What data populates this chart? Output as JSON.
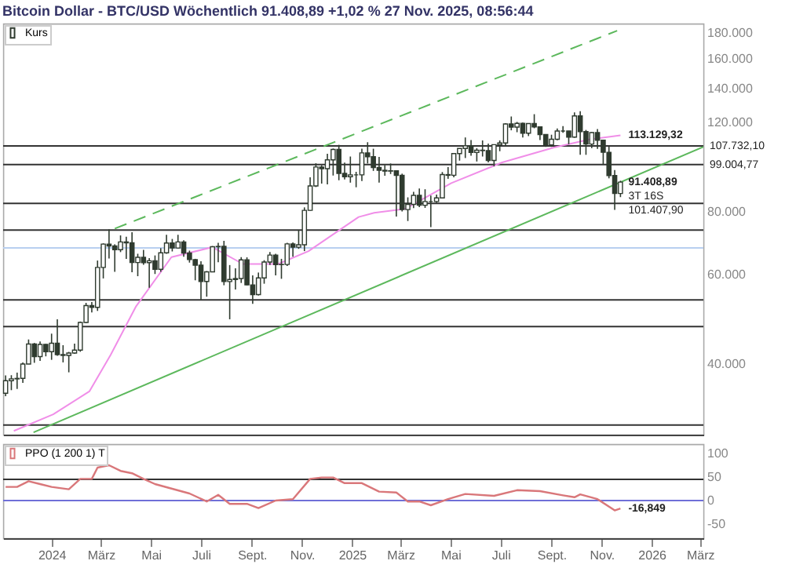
{
  "chart_data": [
    {
      "type": "candlestick",
      "title": "Bitcoin Dollar - BTC/USD Wöchentlich 91.408,89 +1,02 % 27 Nov. 2025, 08:56:44",
      "xlim": [
        "2023-11-03",
        "2026-03-05"
      ],
      "ylim": [
        29000,
        188000
      ],
      "log": "y",
      "grid": false,
      "legend": "top left",
      "tick_labels": "y",
      "yticks": [
        {
          "value": 40000,
          "label": "40.000"
        },
        {
          "value": 60000,
          "label": "60.000"
        },
        {
          "value": 80000,
          "label": "80.000"
        },
        {
          "value": 120000,
          "label": "120.000"
        },
        {
          "value": 140000,
          "label": "140.000"
        },
        {
          "value": 160000,
          "label": "160.000"
        },
        {
          "value": 180000,
          "label": "180.000"
        }
      ],
      "series": [
        {
          "name": "Kurs",
          "type": "candlestick",
          "color": "#2f3b2f",
          "colors": [
            "#ffffff",
            "#ffffff",
            "#ffffff",
            "#ffffff",
            "#ffffff",
            "#2f3b2f",
            "#ffffff",
            "#2f3b2f",
            "#ffffff",
            "#2f3b2f",
            "#2f3b2f",
            "#ffffff",
            "#ffffff",
            "#ffffff",
            "#ffffff",
            "#2f3b2f",
            "#ffffff",
            "#ffffff",
            "#2f3b2f",
            "#2f3b2f",
            "#ffffff",
            "#2f3b2f",
            "#2f3b2f",
            "#ffffff",
            "#2f3b2f",
            "#ffffff",
            "#2f3b2f",
            "#ffffff",
            "#ffffff",
            "#2f3b2f",
            "#ffffff",
            "#2f3b2f",
            "#2f3b2f",
            "#2f3b2f",
            "#2f3b2f",
            "#ffffff",
            "#ffffff",
            "#ffffff",
            "#2f3b2f",
            "#ffffff",
            "#ffffff",
            "#ffffff",
            "#2f3b2f",
            "#2f3b2f",
            "#ffffff",
            "#ffffff",
            "#ffffff",
            "#2f3b2f",
            "#ffffff",
            "#ffffff",
            "#2f3b2f",
            "#ffffff",
            "#ffffff",
            "#ffffff",
            "#ffffff",
            "#2f3b2f",
            "#ffffff",
            "#ffffff",
            "#2f3b2f",
            "#2f3b2f",
            "#ffffff",
            "#2f3b2f",
            "#ffffff",
            "#2f3b2f",
            "#2f3b2f",
            "#2f3b2f",
            "#2f3b2f",
            "#ffffff",
            "#2f3b2f",
            "#2f3b2f",
            "#ffffff",
            "#ffffff",
            "#2f3b2f",
            "#ffffff",
            "#2f3b2f",
            "#ffffff",
            "#ffffff",
            "#2f3b2f",
            "#ffffff",
            "#ffffff",
            "#ffffff",
            "#2f3b2f",
            "#ffffff",
            "#2f3b2f",
            "#2f3b2f",
            "#ffffff",
            "#ffffff",
            "#ffffff",
            "#2f3b2f",
            "#ffffff",
            "#2f3b2f",
            "#ffffff",
            "#2f3b2f",
            "#2f3b2f",
            "#2f3b2f",
            "#ffffff",
            "#ffffff",
            "#2f3b2f",
            "#2f3b2f",
            "#ffffff",
            "#2f3b2f",
            "#2f3b2f",
            "#ffffff",
            "#2f3b2f",
            "#2f3b2f",
            "#2f3b2f",
            "#2f3b2f",
            "#ffffff"
          ],
          "x": [
            "2023-11-06",
            "2023-11-13",
            "2023-11-20",
            "2023-11-27",
            "2023-12-04",
            "2023-12-11",
            "2023-12-18",
            "2023-12-25",
            "2024-01-01",
            "2024-01-08",
            "2024-01-15",
            "2024-01-22",
            "2024-01-29",
            "2024-02-05",
            "2024-02-12",
            "2024-02-19",
            "2024-02-26",
            "2024-03-04",
            "2024-03-11",
            "2024-03-18",
            "2024-03-25",
            "2024-04-01",
            "2024-04-08",
            "2024-04-15",
            "2024-04-22",
            "2024-04-29",
            "2024-05-06",
            "2024-05-13",
            "2024-05-20",
            "2024-05-27",
            "2024-06-03",
            "2024-06-10",
            "2024-06-17",
            "2024-06-24",
            "2024-07-01",
            "2024-07-08",
            "2024-07-15",
            "2024-07-22",
            "2024-07-29",
            "2024-08-05",
            "2024-08-12",
            "2024-08-19",
            "2024-08-26",
            "2024-09-02",
            "2024-09-09",
            "2024-09-16",
            "2024-09-23",
            "2024-09-30",
            "2024-10-07",
            "2024-10-14",
            "2024-10-21",
            "2024-10-28",
            "2024-11-04",
            "2024-11-11",
            "2024-11-18",
            "2024-11-25",
            "2024-12-02",
            "2024-12-09",
            "2024-12-16",
            "2024-12-23",
            "2024-12-30",
            "2025-01-06",
            "2025-01-13",
            "2025-01-20",
            "2025-01-27",
            "2025-02-03",
            "2025-02-10",
            "2025-02-17",
            "2025-02-24",
            "2025-03-03",
            "2025-03-10",
            "2025-03-17",
            "2025-03-24",
            "2025-03-31",
            "2025-04-07",
            "2025-04-14",
            "2025-04-21",
            "2025-04-28",
            "2025-05-05",
            "2025-05-12",
            "2025-05-19",
            "2025-05-26",
            "2025-06-02",
            "2025-06-09",
            "2025-06-16",
            "2025-06-23",
            "2025-06-30",
            "2025-07-07",
            "2025-07-14",
            "2025-07-21",
            "2025-07-28",
            "2025-08-04",
            "2025-08-11",
            "2025-08-18",
            "2025-08-25",
            "2025-09-01",
            "2025-09-08",
            "2025-09-15",
            "2025-09-22",
            "2025-09-29",
            "2025-10-06",
            "2025-10-13",
            "2025-10-20",
            "2025-10-27",
            "2025-11-03",
            "2025-11-10",
            "2025-11-17",
            "2025-11-24"
          ],
          "ohlc": [
            [
              35000,
              37970,
              34530,
              37050
            ],
            [
              37050,
              38000,
              35500,
              37370
            ],
            [
              37370,
              38450,
              35700,
              37450
            ],
            [
              37450,
              40250,
              36700,
              39970
            ],
            [
              39970,
              44700,
              39970,
              43780
            ],
            [
              43780,
              44000,
              40200,
              41360
            ],
            [
              41360,
              44300,
              40550,
              43700
            ],
            [
              43700,
              43800,
              41400,
              42280
            ],
            [
              42280,
              45900,
              40750,
              43950
            ],
            [
              43950,
              49000,
              41500,
              41730
            ],
            [
              41730,
              43550,
              40280,
              41580
            ],
            [
              41580,
              42250,
              38500,
              42030
            ],
            [
              42030,
              43850,
              41880,
              42580
            ],
            [
              42580,
              48500,
              42270,
              48300
            ],
            [
              48300,
              52800,
              48160,
              52140
            ],
            [
              52140,
              52980,
              50550,
              51730
            ],
            [
              51730,
              64000,
              50900,
              62030
            ],
            [
              62030,
              69200,
              59000,
              68960
            ],
            [
              68960,
              73800,
              64600,
              68390
            ],
            [
              68390,
              68900,
              60800,
              67230
            ],
            [
              67230,
              71750,
              66500,
              69650
            ],
            [
              69650,
              71300,
              64500,
              69360
            ],
            [
              69360,
              72800,
              60700,
              63430
            ],
            [
              63430,
              66000,
              59600,
              64940
            ],
            [
              64940,
              67200,
              62800,
              63390
            ],
            [
              63390,
              64700,
              56550,
              63930
            ],
            [
              63930,
              65500,
              60200,
              61500
            ],
            [
              61500,
              67700,
              60800,
              66270
            ],
            [
              66270,
              71950,
              66000,
              69300
            ],
            [
              69300,
              70600,
              66700,
              67760
            ],
            [
              67760,
              71950,
              67600,
              69650
            ],
            [
              69650,
              70200,
              65100,
              66220
            ],
            [
              66220,
              66950,
              63400,
              64270
            ],
            [
              64270,
              64500,
              58500,
              62680
            ],
            [
              62680,
              63800,
              53500,
              58200
            ],
            [
              58200,
              61000,
              54300,
              60800
            ],
            [
              60800,
              68350,
              60800,
              68160
            ],
            [
              68160,
              69400,
              63500,
              68250
            ],
            [
              68250,
              70000,
              57200,
              58160
            ],
            [
              58160,
              62700,
              49000,
              58700
            ],
            [
              58700,
              61800,
              56100,
              58970
            ],
            [
              58970,
              65000,
              57800,
              64200
            ],
            [
              64200,
              64950,
              57200,
              57300
            ],
            [
              57300,
              59800,
              52550,
              54820
            ],
            [
              54820,
              60600,
              54600,
              59120
            ],
            [
              59120,
              64100,
              57600,
              63580
            ],
            [
              63580,
              66500,
              62700,
              65620
            ],
            [
              65620,
              66000,
              59800,
              62820
            ],
            [
              62820,
              64500,
              58900,
              62870
            ],
            [
              62870,
              69400,
              62450,
              69030
            ],
            [
              69030,
              69500,
              65100,
              68000
            ],
            [
              68000,
              73600,
              67500,
              68770
            ],
            [
              68770,
              81500,
              66800,
              80400
            ],
            [
              80400,
              93450,
              80200,
              89850
            ],
            [
              89850,
              99600,
              89400,
              97900
            ],
            [
              97900,
              98700,
              90800,
              97200
            ],
            [
              97200,
              104000,
              90500,
              101150
            ],
            [
              101150,
              106500,
              94200,
              106060
            ],
            [
              106060,
              108300,
              92200,
              95100
            ],
            [
              95100,
              99900,
              92500,
              93700
            ],
            [
              93700,
              102700,
              91200,
              94500
            ],
            [
              94500,
              95800,
              89300,
              94500
            ],
            [
              94500,
              106400,
              91900,
              104400
            ],
            [
              104400,
              109600,
              99500,
              102600
            ],
            [
              102600,
              106400,
              96200,
              97700
            ],
            [
              97700,
              102500,
              91200,
              96460
            ],
            [
              96460,
              98800,
              94100,
              96120
            ],
            [
              96120,
              99500,
              94850,
              96250
            ],
            [
              96250,
              96500,
              78200,
              94270
            ],
            [
              94270,
              95000,
              80000,
              80700
            ],
            [
              80700,
              85300,
              76600,
              82600
            ],
            [
              82600,
              87500,
              81200,
              86100
            ],
            [
              86100,
              88800,
              81600,
              82300
            ],
            [
              82300,
              88500,
              81300,
              83700
            ],
            [
              83700,
              86000,
              74500,
              83700
            ],
            [
              83700,
              86400,
              83100,
              85100
            ],
            [
              85100,
              95700,
              85100,
              94600
            ],
            [
              94600,
              97900,
              92800,
              94300
            ],
            [
              94300,
              104300,
              93400,
              104100
            ],
            [
              104100,
              106600,
              100800,
              106500
            ],
            [
              106500,
              112000,
              102000,
              107800
            ],
            [
              107800,
              110700,
              103100,
              104600
            ],
            [
              104600,
              106700,
              100400,
              105700
            ],
            [
              105700,
              110500,
              102700,
              105500
            ],
            [
              105500,
              108900,
              100000,
              100900
            ],
            [
              100900,
              108500,
              98200,
              108400
            ],
            [
              108400,
              110500,
              105200,
              109200
            ],
            [
              109200,
              119500,
              107500,
              119100
            ],
            [
              119100,
              123200,
              115700,
              117400
            ],
            [
              117400,
              120200,
              114700,
              119400
            ],
            [
              119400,
              119800,
              112000,
              114200
            ],
            [
              114200,
              119400,
              112700,
              119300
            ],
            [
              119300,
              124500,
              116800,
              117500
            ],
            [
              117500,
              117600,
              110700,
              113500
            ],
            [
              113500,
              113700,
              107300,
              108300
            ],
            [
              108300,
              113400,
              107300,
              111100
            ],
            [
              111100,
              116700,
              110600,
              115300
            ],
            [
              115300,
              117900,
              114400,
              115300
            ],
            [
              115300,
              115400,
              108600,
              112200
            ],
            [
              112200,
              125500,
              111900,
              123500
            ],
            [
              123500,
              126200,
              103500,
              115000
            ],
            [
              115000,
              115900,
              103500,
              108700
            ],
            [
              108700,
              114800,
              106700,
              114500
            ],
            [
              114500,
              116400,
              106300,
              110600
            ],
            [
              110600,
              110700,
              98900,
              104700
            ],
            [
              104700,
              107500,
              93000,
              94200
            ],
            [
              94200,
              96600,
              80600,
              86800
            ],
            [
              86800,
              92000,
              85400,
              91408.89
            ]
          ]
        },
        {
          "type": "line",
          "color": "#f08ee8",
          "x": [
            "2023-11-16",
            "2024-01-03",
            "2024-02-16",
            "2024-03-13",
            "2024-04-13",
            "2024-05-26",
            "2024-07-15",
            "2024-08-21",
            "2024-10-03",
            "2024-11-09",
            "2025-01-09",
            "2025-01-28",
            "2025-03-07",
            "2025-05-02",
            "2025-07-03",
            "2025-09-04",
            "2025-10-17",
            "2025-11-24"
          ],
          "values": [
            29500,
            31800,
            35300,
            41700,
            52000,
            65000,
            68000,
            63000,
            63000,
            66800,
            78000,
            79500,
            81000,
            91000,
            100000,
            107000,
            111000,
            113129.32
          ]
        },
        {
          "type": "line",
          "color": "#5cb85c",
          "line_style": "solid",
          "x": [
            "2023-12-10",
            "2026-03-05"
          ],
          "values": [
            29300,
            107300
          ]
        },
        {
          "type": "line",
          "color": "#5cb85c",
          "line_style": "dashed",
          "x": [
            "2024-03-18",
            "2025-11-20"
          ],
          "values": [
            74000,
            182000
          ]
        }
      ],
      "ref_lines": [
        {
          "axis": "y",
          "value": 107732.1,
          "label": "107.732,10",
          "color": "#333333"
        },
        {
          "axis": "y",
          "value": 99004.77,
          "label": "99.004,77",
          "color": "#333333"
        },
        {
          "axis": "y",
          "value": 83000,
          "color": "#333333"
        },
        {
          "axis": "y",
          "value": 73500,
          "color": "#333333"
        },
        {
          "axis": "y",
          "value": 67760,
          "color": "#b8cff0"
        },
        {
          "axis": "y",
          "value": 53500,
          "color": "#333333"
        },
        {
          "axis": "y",
          "value": 47400,
          "color": "#333333"
        },
        {
          "axis": "y",
          "value": 30300,
          "color": "#333333"
        }
      ],
      "annotations": [
        {
          "text": "113.129,32",
          "x": "2025-11-24",
          "y": 113129.32
        },
        {
          "text": "91.408,89",
          "x": "2025-11-24",
          "y": 91408.89
        },
        "3T 16S",
        "101.407,90"
      ]
    },
    {
      "type": "line",
      "xlim": [
        "2023-11-03",
        "2026-03-05"
      ],
      "ylim": [
        -80,
        120
      ],
      "grid": false,
      "legend": "top left",
      "yticks": [
        -50,
        0,
        50,
        100
      ],
      "xticks": [
        {
          "value": "2024-01-01",
          "label": "2024"
        },
        {
          "value": "2024-03-01",
          "label": "März"
        },
        {
          "value": "2024-05-01",
          "label": "Mai"
        },
        {
          "value": "2024-07-01",
          "label": "Juli"
        },
        {
          "value": "2024-09-01",
          "label": "Sept."
        },
        {
          "value": "2024-11-01",
          "label": "Nov."
        },
        {
          "value": "2025-01-01",
          "label": "2025"
        },
        {
          "value": "2025-03-01",
          "label": "März"
        },
        {
          "value": "2025-05-01",
          "label": "Mai"
        },
        {
          "value": "2025-07-01",
          "label": "Juli"
        },
        {
          "value": "2025-09-01",
          "label": "Sept."
        },
        {
          "value": "2025-11-01",
          "label": "Nov."
        },
        {
          "value": "2026-01-01",
          "label": "2026"
        },
        {
          "value": "2026-03-01",
          "label": "März"
        }
      ],
      "series": [
        {
          "name": "PPO (1 200 1) T",
          "color": "#d9777a",
          "x": [
            "2023-11-06",
            "2023-11-20",
            "2023-12-04",
            "2023-12-18",
            "2024-01-01",
            "2024-01-22",
            "2024-02-05",
            "2024-02-19",
            "2024-02-26",
            "2024-03-11",
            "2024-03-25",
            "2024-04-08",
            "2024-04-22",
            "2024-05-06",
            "2024-05-27",
            "2024-06-17",
            "2024-07-08",
            "2024-07-22",
            "2024-08-05",
            "2024-08-26",
            "2024-09-09",
            "2024-09-30",
            "2024-10-21",
            "2024-11-11",
            "2024-11-25",
            "2024-12-09",
            "2024-12-23",
            "2025-01-13",
            "2025-02-03",
            "2025-02-24",
            "2025-03-10",
            "2025-03-24",
            "2025-04-07",
            "2025-04-28",
            "2025-05-19",
            "2025-06-23",
            "2025-07-21",
            "2025-08-18",
            "2025-09-15",
            "2025-09-29",
            "2025-10-06",
            "2025-10-27",
            "2025-11-17",
            "2025-11-24"
          ],
          "values": [
            29,
            29,
            41,
            35,
            29,
            24,
            46,
            46,
            70,
            75,
            63,
            58,
            46,
            35,
            25,
            15,
            -2,
            12,
            -7,
            -7,
            -16,
            0,
            3,
            46,
            49,
            49,
            37,
            37,
            19,
            17,
            -2,
            -2,
            -10,
            3,
            14,
            10,
            22,
            20,
            11,
            7,
            13,
            3,
            -21,
            -16.849
          ]
        }
      ],
      "ref_lines": [
        {
          "axis": "y",
          "value": 0,
          "color": "#6f6fd8"
        },
        {
          "axis": "y",
          "value": 45,
          "color": "#333333"
        }
      ],
      "annotations": [
        {
          "text": "-16,849",
          "x": "2025-11-24",
          "y": -16.849
        }
      ]
    }
  ]
}
